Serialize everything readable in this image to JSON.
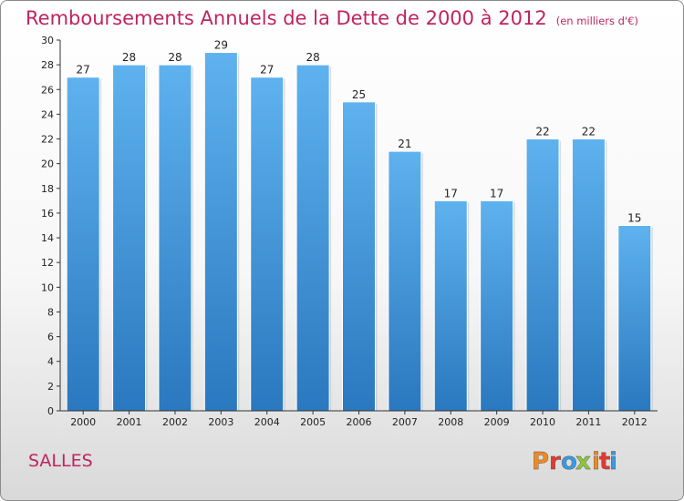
{
  "chart_data": {
    "type": "bar",
    "title": "Remboursements Annuels de la Dette de 2000 à 2012",
    "subtitle": "(en milliers d'€)",
    "categories": [
      "2000",
      "2001",
      "2002",
      "2003",
      "2004",
      "2005",
      "2006",
      "2007",
      "2008",
      "2009",
      "2010",
      "2011",
      "2012"
    ],
    "values": [
      27,
      28,
      28,
      29,
      27,
      28,
      25,
      21,
      17,
      17,
      22,
      22,
      15
    ],
    "ylim": [
      0,
      30
    ],
    "yticks": [
      0,
      2,
      4,
      6,
      8,
      10,
      12,
      14,
      16,
      18,
      20,
      22,
      24,
      26,
      28,
      30
    ],
    "grid": false,
    "bar_color": "#3d92d8"
  },
  "commune": "SALLES",
  "logo": {
    "text": "Proxiti",
    "letter_colors": [
      "#f08a1f",
      "#e23b2e",
      "#3b9ae1",
      "#8dc63f",
      "#f08a1f",
      "#e23b2e",
      "#3b9ae1"
    ]
  }
}
